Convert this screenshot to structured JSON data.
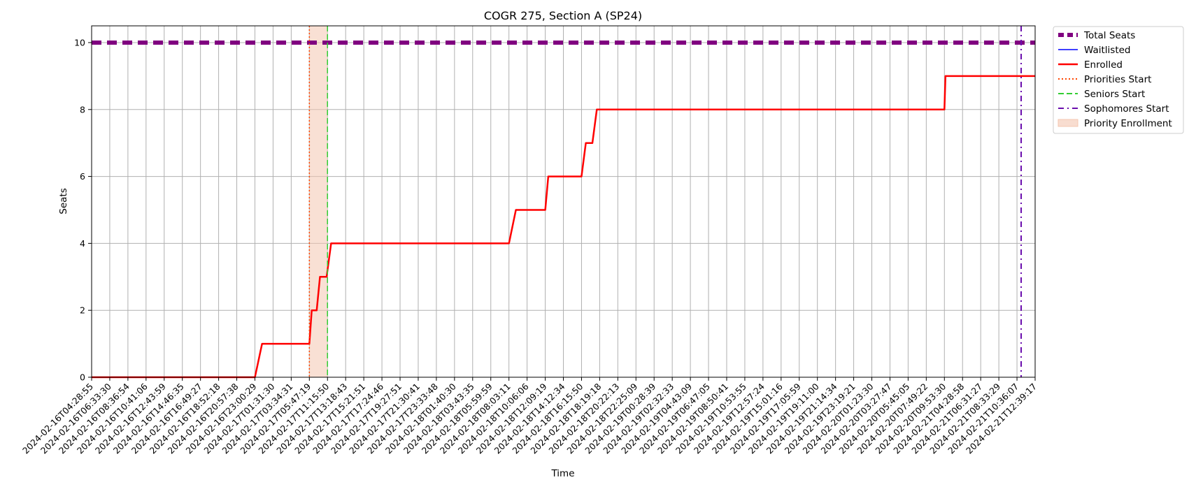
{
  "chart_data": {
    "type": "line",
    "title": "COGR 275, Section A (SP24)",
    "xlabel": "Time",
    "ylabel": "Seats",
    "ylim": [
      0,
      10.5
    ],
    "yticks": [
      0,
      2,
      4,
      6,
      8,
      10
    ],
    "grid": true,
    "legend_placement": "outside-top-right",
    "x_tick_labels": [
      "2024-02-16T04:28:55",
      "2024-02-16T06:33:30",
      "2024-02-16T08:36:54",
      "2024-02-16T10:41:06",
      "2024-02-16T12:43:59",
      "2024-02-16T14:46:35",
      "2024-02-16T16:49:27",
      "2024-02-16T18:52:18",
      "2024-02-16T20:57:38",
      "2024-02-16T23:00:29",
      "2024-02-17T01:31:30",
      "2024-02-17T03:34:31",
      "2024-02-17T05:47:19",
      "2024-02-17T11:15:50",
      "2024-02-17T13:18:43",
      "2024-02-17T15:21:51",
      "2024-02-17T17:24:46",
      "2024-02-17T19:27:51",
      "2024-02-17T21:30:41",
      "2024-02-17T23:33:48",
      "2024-02-18T01:40:30",
      "2024-02-18T03:43:35",
      "2024-02-18T05:59:59",
      "2024-02-18T08:03:11",
      "2024-02-18T10:06:06",
      "2024-02-18T12:09:19",
      "2024-02-18T14:12:34",
      "2024-02-18T16:15:50",
      "2024-02-18T18:19:18",
      "2024-02-18T20:22:13",
      "2024-02-18T22:25:09",
      "2024-02-19T00:28:39",
      "2024-02-19T02:32:33",
      "2024-02-19T04:43:09",
      "2024-02-19T06:47:05",
      "2024-02-19T08:50:41",
      "2024-02-19T10:53:55",
      "2024-02-19T12:57:24",
      "2024-02-19T15:01:16",
      "2024-02-19T17:05:59",
      "2024-02-19T19:11:00",
      "2024-02-19T21:14:34",
      "2024-02-19T23:19:21",
      "2024-02-20T01:23:30",
      "2024-02-20T03:27:47",
      "2024-02-20T05:45:05",
      "2024-02-20T07:49:22",
      "2024-02-20T09:53:30",
      "2024-02-21T04:28:58",
      "2024-02-21T06:31:27",
      "2024-02-21T08:33:29",
      "2024-02-21T10:36:07",
      "2024-02-21T12:39:17"
    ],
    "series": [
      {
        "name": "Total Seats",
        "color": "#800080",
        "style": "dashed-thick",
        "points": [
          [
            "2024-02-16T04:28:55",
            10
          ],
          [
            "2024-02-21T12:39:17",
            10
          ]
        ]
      },
      {
        "name": "Waitlisted",
        "color": "#0000ff",
        "style": "solid-thin",
        "points": []
      },
      {
        "name": "Enrolled",
        "color": "#ff0000",
        "style": "solid",
        "points": [
          [
            "2024-02-16T04:28:55",
            0
          ],
          [
            "2024-02-16T23:00:29",
            0
          ],
          [
            "2024-02-17T00:00:00",
            1
          ],
          [
            "2024-02-17T05:47:19",
            1
          ],
          [
            "2024-02-17T06:30:00",
            2
          ],
          [
            "2024-02-17T08:00:00",
            2
          ],
          [
            "2024-02-17T09:00:00",
            3
          ],
          [
            "2024-02-17T11:00:00",
            3
          ],
          [
            "2024-02-17T11:40:00",
            4
          ],
          [
            "2024-02-18T08:03:11",
            4
          ],
          [
            "2024-02-18T08:50:00",
            5
          ],
          [
            "2024-02-18T12:09:19",
            5
          ],
          [
            "2024-02-18T12:30:00",
            6
          ],
          [
            "2024-02-18T16:15:50",
            6
          ],
          [
            "2024-02-18T16:45:00",
            7
          ],
          [
            "2024-02-18T17:30:00",
            7
          ],
          [
            "2024-02-18T18:00:00",
            8
          ],
          [
            "2024-02-20T09:53:30",
            8
          ],
          [
            "2024-02-20T11:00:00",
            9
          ],
          [
            "2024-02-21T12:39:17",
            9
          ]
        ]
      }
    ],
    "vertical_lines": [
      {
        "name": "Priorities Start",
        "color": "#ff4500",
        "style": "dotted",
        "x": "2024-02-17T05:47:19"
      },
      {
        "name": "Seniors Start",
        "color": "#32cd32",
        "style": "dashed",
        "x": "2024-02-17T11:15:50"
      },
      {
        "name": "Sophomores Start",
        "color": "#6a0dad",
        "style": "dashdot",
        "x": "2024-02-21T12:39:17"
      }
    ],
    "shaded_regions": [
      {
        "name": "Priority Enrollment",
        "color": "#f4c7b0",
        "x_start": "2024-02-17T05:47:19",
        "x_end": "2024-02-17T11:15:50"
      }
    ],
    "legend": [
      "Total Seats",
      "Waitlisted",
      "Enrolled",
      "Priorities Start",
      "Seniors Start",
      "Sophomores Start",
      "Priority Enrollment"
    ]
  }
}
